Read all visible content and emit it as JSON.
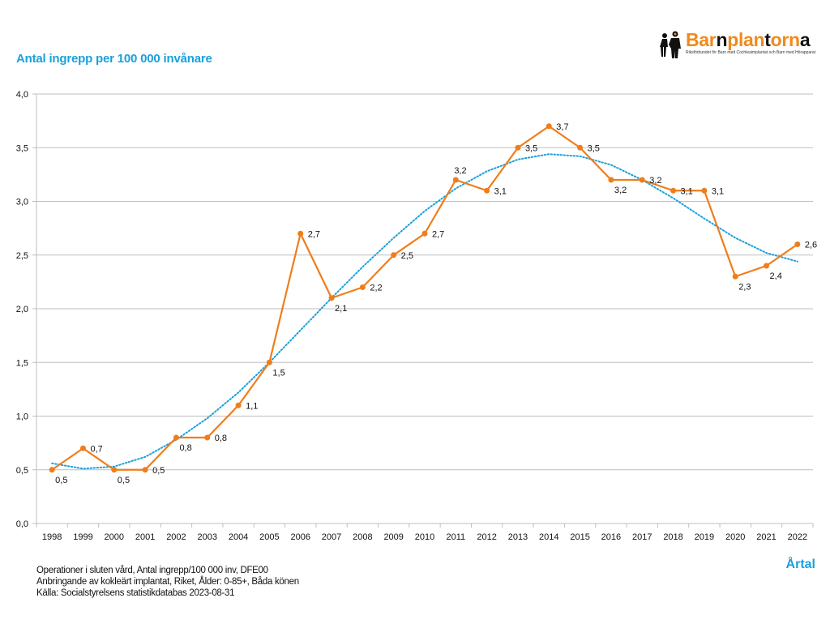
{
  "logo": {
    "name_parts": [
      "Bar",
      "n",
      "plan",
      "t",
      "orn",
      "a"
    ],
    "subtitle": "Riksförbundet för Barn med Cochleaimplantat och Barn med Hörapparat"
  },
  "footnotes": [
    "Operationer i sluten vård, Antal ingrepp/100 000 inv, DFE00",
    "Anbringande av kokleärt implantat, Riket, Ålder: 0-85+, Båda könen",
    "Källa: Socialstyrelsens statistikdatabas 2023-08-31"
  ],
  "chart_data": {
    "type": "line",
    "title": "Antal ingrepp per 100 000 invånare",
    "xlabel": "Årtal",
    "ylabel": "",
    "categories": [
      "1998",
      "1999",
      "2000",
      "2001",
      "2002",
      "2003",
      "2004",
      "2005",
      "2006",
      "2007",
      "2008",
      "2009",
      "2010",
      "2011",
      "2012",
      "2013",
      "2014",
      "2015",
      "2016",
      "2017",
      "2018",
      "2019",
      "2020",
      "2021",
      "2022"
    ],
    "series": [
      {
        "name": "Antal ingrepp per 100 000 invånare",
        "color": "#f07d1a",
        "values": [
          0.5,
          0.7,
          0.5,
          0.5,
          0.8,
          0.8,
          1.1,
          1.5,
          2.7,
          2.1,
          2.2,
          2.5,
          2.7,
          3.2,
          3.1,
          3.5,
          3.7,
          3.5,
          3.2,
          3.2,
          3.1,
          3.1,
          2.3,
          2.4,
          2.6
        ],
        "data_labels": [
          "0,5",
          "0,7",
          "0,5",
          "0,5",
          "0,8",
          "0,8",
          "1,1",
          "1,5",
          "2,7",
          "2,1",
          "2,2",
          "2,5",
          "2,7",
          "3,2",
          "3,1",
          "3,5",
          "3,7",
          "3,5",
          "3,2",
          "3,2",
          "3,1",
          "3,1",
          "2,3",
          "2,4",
          "2,6"
        ]
      },
      {
        "name": "Trendlinje (polynom)",
        "color": "#1aa0dc",
        "style": "dotted",
        "values": [
          0.56,
          0.51,
          0.53,
          0.62,
          0.78,
          0.98,
          1.22,
          1.5,
          1.8,
          2.1,
          2.39,
          2.66,
          2.91,
          3.12,
          3.28,
          3.39,
          3.44,
          3.42,
          3.34,
          3.2,
          3.03,
          2.84,
          2.66,
          2.52,
          2.44
        ]
      }
    ],
    "ylim": [
      0,
      4
    ],
    "yticks": [
      0,
      0.5,
      1,
      1.5,
      2,
      2.5,
      3,
      3.5,
      4
    ],
    "ytick_labels": [
      "0,0",
      "0,5",
      "1,0",
      "1,5",
      "2,0",
      "2,5",
      "3,0",
      "3,5",
      "4,0"
    ],
    "grid": true,
    "legend": "none"
  }
}
